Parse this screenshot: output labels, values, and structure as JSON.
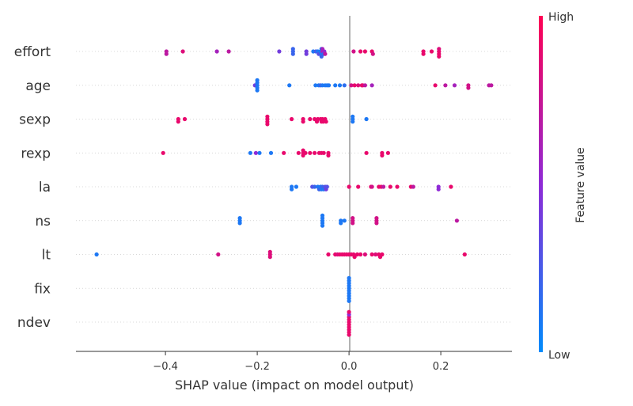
{
  "chart_data": {
    "type": "scatter",
    "subtype": "shap-beeswarm",
    "title": "",
    "xlabel": "SHAP value (impact on model output)",
    "ylabel": "",
    "xlim": [
      -0.595,
      0.355
    ],
    "x_ticks": [
      -0.4,
      -0.2,
      0.0,
      0.2
    ],
    "x_tick_labels": [
      "−0.4",
      "−0.2",
      "0.0",
      "0.2"
    ],
    "grid": false,
    "zero_line": true,
    "colorbar": {
      "label": "Feature value",
      "high_label": "High",
      "low_label": "Low",
      "low_color": "#008bfb",
      "high_color": "#ff0052"
    },
    "features": [
      {
        "name": "effort",
        "points": [
          {
            "x": -0.398,
            "v": 0.7
          },
          {
            "x": -0.398,
            "v": 0.7
          },
          {
            "x": -0.362,
            "v": 0.85
          },
          {
            "x": -0.288,
            "v": 0.6
          },
          {
            "x": -0.262,
            "v": 0.7
          },
          {
            "x": -0.152,
            "v": 0.4
          },
          {
            "x": -0.122,
            "v": 0.2
          },
          {
            "x": -0.122,
            "v": 0.2
          },
          {
            "x": -0.122,
            "v": 0.2
          },
          {
            "x": -0.093,
            "v": 0.4
          },
          {
            "x": -0.093,
            "v": 0.4
          },
          {
            "x": -0.078,
            "v": 0.1
          },
          {
            "x": -0.072,
            "v": 0.25
          },
          {
            "x": -0.068,
            "v": 0.1
          },
          {
            "x": -0.066,
            "v": 0.3
          },
          {
            "x": -0.062,
            "v": 0.1
          },
          {
            "x": -0.06,
            "v": 0.1
          },
          {
            "x": -0.06,
            "v": 0.1
          },
          {
            "x": -0.058,
            "v": 0.6
          },
          {
            "x": -0.056,
            "v": 0.15
          },
          {
            "x": -0.054,
            "v": 0.5
          },
          {
            "x": -0.052,
            "v": 0.7
          },
          {
            "x": -0.06,
            "v": 0.2
          },
          {
            "x": -0.058,
            "v": 0.6
          },
          {
            "x": 0.01,
            "v": 0.8
          },
          {
            "x": 0.025,
            "v": 0.9
          },
          {
            "x": 0.035,
            "v": 0.9
          },
          {
            "x": 0.05,
            "v": 0.9
          },
          {
            "x": 0.052,
            "v": 0.8
          },
          {
            "x": 0.162,
            "v": 0.9
          },
          {
            "x": 0.162,
            "v": 0.9
          },
          {
            "x": 0.18,
            "v": 0.9
          },
          {
            "x": 0.196,
            "v": 0.9
          },
          {
            "x": 0.196,
            "v": 0.9
          },
          {
            "x": 0.196,
            "v": 0.85
          },
          {
            "x": 0.196,
            "v": 0.9
          }
        ]
      },
      {
        "name": "age",
        "points": [
          {
            "x": -0.205,
            "v": 0.4
          },
          {
            "x": -0.2,
            "v": 0.1
          },
          {
            "x": -0.2,
            "v": 0.1
          },
          {
            "x": -0.2,
            "v": 0.1
          },
          {
            "x": -0.2,
            "v": 0.1
          },
          {
            "x": -0.2,
            "v": 0.1
          },
          {
            "x": -0.13,
            "v": 0.1
          },
          {
            "x": -0.073,
            "v": 0.1
          },
          {
            "x": -0.066,
            "v": 0.1
          },
          {
            "x": -0.062,
            "v": 0.2
          },
          {
            "x": -0.058,
            "v": 0.1
          },
          {
            "x": -0.052,
            "v": 0.1
          },
          {
            "x": -0.048,
            "v": 0.1
          },
          {
            "x": -0.044,
            "v": 0.1
          },
          {
            "x": -0.03,
            "v": 0.1
          },
          {
            "x": -0.02,
            "v": 0.1
          },
          {
            "x": -0.01,
            "v": 0.15
          },
          {
            "x": 0.005,
            "v": 0.8
          },
          {
            "x": 0.012,
            "v": 0.9
          },
          {
            "x": 0.02,
            "v": 0.85
          },
          {
            "x": 0.028,
            "v": 0.9
          },
          {
            "x": 0.03,
            "v": 0.9
          },
          {
            "x": 0.035,
            "v": 0.7
          },
          {
            "x": 0.05,
            "v": 0.6
          },
          {
            "x": 0.188,
            "v": 0.9
          },
          {
            "x": 0.21,
            "v": 0.7
          },
          {
            "x": 0.23,
            "v": 0.6
          },
          {
            "x": 0.26,
            "v": 0.8
          },
          {
            "x": 0.26,
            "v": 0.8
          },
          {
            "x": 0.305,
            "v": 0.7
          },
          {
            "x": 0.31,
            "v": 0.7
          }
        ]
      },
      {
        "name": "sexp",
        "points": [
          {
            "x": -0.372,
            "v": 0.9
          },
          {
            "x": -0.372,
            "v": 0.9
          },
          {
            "x": -0.358,
            "v": 0.9
          },
          {
            "x": -0.178,
            "v": 0.9
          },
          {
            "x": -0.178,
            "v": 0.9
          },
          {
            "x": -0.178,
            "v": 0.9
          },
          {
            "x": -0.178,
            "v": 0.9
          },
          {
            "x": -0.125,
            "v": 0.9
          },
          {
            "x": -0.1,
            "v": 0.9
          },
          {
            "x": -0.1,
            "v": 0.9
          },
          {
            "x": -0.085,
            "v": 0.9
          },
          {
            "x": -0.075,
            "v": 0.9
          },
          {
            "x": -0.068,
            "v": 0.9
          },
          {
            "x": -0.062,
            "v": 0.9
          },
          {
            "x": -0.06,
            "v": 0.9
          },
          {
            "x": -0.058,
            "v": 0.9
          },
          {
            "x": -0.056,
            "v": 0.9
          },
          {
            "x": -0.052,
            "v": 0.9
          },
          {
            "x": -0.05,
            "v": 0.9
          },
          {
            "x": -0.07,
            "v": 0.9
          },
          {
            "x": 0.008,
            "v": 0.1
          },
          {
            "x": 0.008,
            "v": 0.1
          },
          {
            "x": 0.008,
            "v": 0.1
          },
          {
            "x": 0.038,
            "v": 0.1
          }
        ]
      },
      {
        "name": "rexp",
        "points": [
          {
            "x": -0.405,
            "v": 0.9
          },
          {
            "x": -0.215,
            "v": 0.1
          },
          {
            "x": -0.203,
            "v": 0.5
          },
          {
            "x": -0.195,
            "v": 0.1
          },
          {
            "x": -0.17,
            "v": 0.1
          },
          {
            "x": -0.142,
            "v": 0.9
          },
          {
            "x": -0.11,
            "v": 0.9
          },
          {
            "x": -0.1,
            "v": 0.9
          },
          {
            "x": -0.1,
            "v": 0.9
          },
          {
            "x": -0.1,
            "v": 0.9
          },
          {
            "x": -0.095,
            "v": 0.9
          },
          {
            "x": -0.085,
            "v": 0.9
          },
          {
            "x": -0.075,
            "v": 0.9
          },
          {
            "x": -0.065,
            "v": 0.9
          },
          {
            "x": -0.06,
            "v": 0.9
          },
          {
            "x": -0.055,
            "v": 0.9
          },
          {
            "x": -0.045,
            "v": 0.9
          },
          {
            "x": -0.045,
            "v": 0.9
          },
          {
            "x": 0.038,
            "v": 0.9
          },
          {
            "x": 0.072,
            "v": 0.9
          },
          {
            "x": 0.072,
            "v": 0.9
          },
          {
            "x": 0.085,
            "v": 0.9
          }
        ]
      },
      {
        "name": "la",
        "points": [
          {
            "x": -0.125,
            "v": 0.1
          },
          {
            "x": -0.125,
            "v": 0.1
          },
          {
            "x": -0.115,
            "v": 0.1
          },
          {
            "x": -0.08,
            "v": 0.3
          },
          {
            "x": -0.075,
            "v": 0.2
          },
          {
            "x": -0.068,
            "v": 0.1
          },
          {
            "x": -0.065,
            "v": 0.2
          },
          {
            "x": -0.062,
            "v": 0.1
          },
          {
            "x": -0.06,
            "v": 0.1
          },
          {
            "x": -0.058,
            "v": 0.2
          },
          {
            "x": -0.055,
            "v": 0.1
          },
          {
            "x": -0.052,
            "v": 0.3
          },
          {
            "x": -0.05,
            "v": 0.4
          },
          {
            "x": -0.048,
            "v": 0.3
          },
          {
            "x": 0.0,
            "v": 0.9
          },
          {
            "x": 0.02,
            "v": 0.9
          },
          {
            "x": 0.048,
            "v": 0.9
          },
          {
            "x": 0.05,
            "v": 0.8
          },
          {
            "x": 0.065,
            "v": 0.9
          },
          {
            "x": 0.07,
            "v": 0.9
          },
          {
            "x": 0.075,
            "v": 0.7
          },
          {
            "x": 0.09,
            "v": 0.9
          },
          {
            "x": 0.105,
            "v": 0.9
          },
          {
            "x": 0.135,
            "v": 0.9
          },
          {
            "x": 0.14,
            "v": 0.7
          },
          {
            "x": 0.195,
            "v": 0.5
          },
          {
            "x": 0.195,
            "v": 0.5
          },
          {
            "x": 0.222,
            "v": 0.9
          }
        ]
      },
      {
        "name": "ns",
        "points": [
          {
            "x": -0.238,
            "v": 0.1
          },
          {
            "x": -0.238,
            "v": 0.1
          },
          {
            "x": -0.238,
            "v": 0.1
          },
          {
            "x": -0.058,
            "v": 0.1
          },
          {
            "x": -0.058,
            "v": 0.1
          },
          {
            "x": -0.058,
            "v": 0.1
          },
          {
            "x": -0.058,
            "v": 0.1
          },
          {
            "x": -0.058,
            "v": 0.1
          },
          {
            "x": -0.018,
            "v": 0.1
          },
          {
            "x": -0.018,
            "v": 0.1
          },
          {
            "x": -0.01,
            "v": 0.1
          },
          {
            "x": 0.008,
            "v": 0.8
          },
          {
            "x": 0.008,
            "v": 0.8
          },
          {
            "x": 0.008,
            "v": 0.8
          },
          {
            "x": 0.06,
            "v": 0.8
          },
          {
            "x": 0.06,
            "v": 0.8
          },
          {
            "x": 0.06,
            "v": 0.8
          },
          {
            "x": 0.235,
            "v": 0.7
          }
        ]
      },
      {
        "name": "lt",
        "points": [
          {
            "x": -0.55,
            "v": 0.1
          },
          {
            "x": -0.285,
            "v": 0.8
          },
          {
            "x": -0.172,
            "v": 0.85
          },
          {
            "x": -0.172,
            "v": 0.85
          },
          {
            "x": -0.172,
            "v": 0.85
          },
          {
            "x": -0.045,
            "v": 0.9
          },
          {
            "x": -0.03,
            "v": 0.9
          },
          {
            "x": -0.025,
            "v": 0.85
          },
          {
            "x": -0.02,
            "v": 0.9
          },
          {
            "x": -0.015,
            "v": 0.9
          },
          {
            "x": -0.01,
            "v": 0.9
          },
          {
            "x": -0.005,
            "v": 0.9
          },
          {
            "x": 0.0,
            "v": 0.9
          },
          {
            "x": 0.005,
            "v": 0.9
          },
          {
            "x": 0.01,
            "v": 0.9
          },
          {
            "x": 0.012,
            "v": 0.9
          },
          {
            "x": 0.018,
            "v": 0.9
          },
          {
            "x": 0.025,
            "v": 0.9
          },
          {
            "x": 0.035,
            "v": 0.85
          },
          {
            "x": 0.05,
            "v": 0.9
          },
          {
            "x": 0.058,
            "v": 0.85
          },
          {
            "x": 0.065,
            "v": 0.9
          },
          {
            "x": 0.068,
            "v": 0.9
          },
          {
            "x": 0.072,
            "v": 0.9
          },
          {
            "x": 0.252,
            "v": 0.9
          }
        ]
      },
      {
        "name": "fix",
        "points": [
          {
            "x": 0.0,
            "v": 0.1
          },
          {
            "x": 0.0,
            "v": 0.1
          },
          {
            "x": 0.0,
            "v": 0.1
          },
          {
            "x": 0.0,
            "v": 0.1
          },
          {
            "x": 0.0,
            "v": 0.1
          },
          {
            "x": 0.0,
            "v": 0.1
          },
          {
            "x": 0.0,
            "v": 0.1
          },
          {
            "x": 0.0,
            "v": 0.1
          },
          {
            "x": 0.0,
            "v": 0.1
          },
          {
            "x": 0.0,
            "v": 0.1
          }
        ]
      },
      {
        "name": "ndev",
        "points": [
          {
            "x": 0.0,
            "v": 0.9
          },
          {
            "x": 0.0,
            "v": 0.9
          },
          {
            "x": 0.0,
            "v": 0.9
          },
          {
            "x": 0.0,
            "v": 0.9
          },
          {
            "x": 0.0,
            "v": 0.9
          },
          {
            "x": 0.0,
            "v": 0.9
          },
          {
            "x": 0.0,
            "v": 0.5
          },
          {
            "x": 0.0,
            "v": 0.9
          },
          {
            "x": 0.0,
            "v": 0.9
          },
          {
            "x": 0.0,
            "v": 0.9
          }
        ]
      }
    ]
  }
}
